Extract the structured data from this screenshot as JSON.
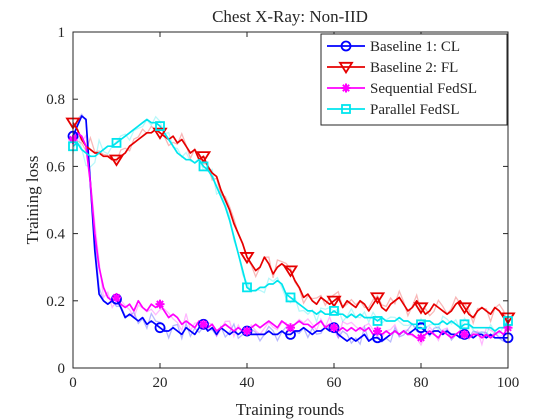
{
  "chart_data": {
    "type": "line",
    "title": "Chest X-Ray: Non-IID",
    "xlabel": "Training rounds",
    "ylabel": "Training loss",
    "xlim": [
      0,
      100
    ],
    "ylim": [
      0,
      1
    ],
    "xticks": [
      0,
      20,
      40,
      60,
      80,
      100
    ],
    "yticks": [
      0,
      0.2,
      0.4,
      0.6,
      0.8,
      1
    ],
    "ytick_labels": [
      "0",
      "0.2",
      "0.4",
      "0.6",
      "0.8",
      "1"
    ],
    "grid": false,
    "legend_position": "top-right",
    "series": [
      {
        "name": "Baseline 1: CL",
        "color": "#0000ff",
        "marker": "circle",
        "marker_every": 10,
        "x": [
          0,
          1,
          2,
          3,
          4,
          5,
          6,
          7,
          8,
          9,
          10,
          11,
          12,
          13,
          14,
          15,
          16,
          17,
          18,
          19,
          20,
          21,
          22,
          23,
          24,
          25,
          26,
          27,
          28,
          29,
          30,
          31,
          32,
          33,
          34,
          35,
          36,
          37,
          38,
          39,
          40,
          41,
          42,
          43,
          44,
          45,
          46,
          47,
          48,
          49,
          50,
          51,
          52,
          53,
          54,
          55,
          56,
          57,
          58,
          59,
          60,
          61,
          62,
          63,
          64,
          65,
          66,
          67,
          68,
          69,
          70,
          71,
          72,
          73,
          74,
          75,
          76,
          77,
          78,
          79,
          80,
          81,
          82,
          83,
          84,
          85,
          86,
          87,
          88,
          89,
          90,
          91,
          92,
          93,
          94,
          95,
          96,
          97,
          98,
          99,
          100
        ],
        "values": [
          0.69,
          0.72,
          0.75,
          0.74,
          0.55,
          0.35,
          0.22,
          0.2,
          0.19,
          0.2,
          0.205,
          0.18,
          0.15,
          0.16,
          0.15,
          0.14,
          0.15,
          0.13,
          0.14,
          0.13,
          0.12,
          0.11,
          0.11,
          0.12,
          0.11,
          0.1,
          0.12,
          0.11,
          0.1,
          0.12,
          0.13,
          0.11,
          0.12,
          0.1,
          0.12,
          0.11,
          0.1,
          0.11,
          0.1,
          0.11,
          0.11,
          0.1,
          0.1,
          0.1,
          0.1,
          0.11,
          0.1,
          0.1,
          0.11,
          0.1,
          0.1,
          0.11,
          0.11,
          0.12,
          0.11,
          0.1,
          0.11,
          0.11,
          0.12,
          0.11,
          0.12,
          0.1,
          0.09,
          0.08,
          0.09,
          0.08,
          0.09,
          0.1,
          0.08,
          0.09,
          0.09,
          0.08,
          0.09,
          0.1,
          0.11,
          0.1,
          0.11,
          0.1,
          0.11,
          0.12,
          0.12,
          0.11,
          0.1,
          0.11,
          0.11,
          0.1,
          0.11,
          0.1,
          0.1,
          0.09,
          0.1,
          0.1,
          0.09,
          0.1,
          0.1,
          0.09,
          0.1,
          0.09,
          0.09,
          0.09,
          0.09
        ]
      },
      {
        "name": "Baseline 2: FL",
        "color": "#e60000",
        "marker": "triangle-down",
        "marker_every": 10,
        "x": [
          0,
          1,
          2,
          3,
          4,
          5,
          6,
          7,
          8,
          9,
          10,
          11,
          12,
          13,
          14,
          15,
          16,
          17,
          18,
          19,
          20,
          21,
          22,
          23,
          24,
          25,
          26,
          27,
          28,
          29,
          30,
          31,
          32,
          33,
          34,
          35,
          36,
          37,
          38,
          39,
          40,
          41,
          42,
          43,
          44,
          45,
          46,
          47,
          48,
          49,
          50,
          51,
          52,
          53,
          54,
          55,
          56,
          57,
          58,
          59,
          60,
          61,
          62,
          63,
          64,
          65,
          66,
          67,
          68,
          69,
          70,
          71,
          72,
          73,
          74,
          75,
          76,
          77,
          78,
          79,
          80,
          81,
          82,
          83,
          84,
          85,
          86,
          87,
          88,
          89,
          90,
          91,
          92,
          93,
          94,
          95,
          96,
          97,
          98,
          99,
          100
        ],
        "values": [
          0.73,
          0.71,
          0.68,
          0.66,
          0.65,
          0.64,
          0.64,
          0.63,
          0.63,
          0.62,
          0.62,
          0.63,
          0.64,
          0.66,
          0.67,
          0.68,
          0.69,
          0.7,
          0.7,
          0.71,
          0.7,
          0.69,
          0.68,
          0.69,
          0.67,
          0.68,
          0.66,
          0.64,
          0.65,
          0.62,
          0.63,
          0.6,
          0.58,
          0.57,
          0.53,
          0.5,
          0.47,
          0.43,
          0.4,
          0.37,
          0.33,
          0.31,
          0.29,
          0.3,
          0.33,
          0.31,
          0.28,
          0.3,
          0.31,
          0.3,
          0.29,
          0.26,
          0.24,
          0.21,
          0.22,
          0.2,
          0.19,
          0.21,
          0.2,
          0.19,
          0.2,
          0.21,
          0.18,
          0.2,
          0.19,
          0.18,
          0.2,
          0.19,
          0.17,
          0.19,
          0.21,
          0.18,
          0.17,
          0.19,
          0.2,
          0.21,
          0.19,
          0.17,
          0.18,
          0.2,
          0.18,
          0.16,
          0.17,
          0.19,
          0.18,
          0.17,
          0.16,
          0.17,
          0.19,
          0.2,
          0.18,
          0.16,
          0.15,
          0.17,
          0.18,
          0.17,
          0.16,
          0.18,
          0.17,
          0.15,
          0.15
        ]
      },
      {
        "name": "Sequential FedSL",
        "color": "#ff00ff",
        "marker": "asterisk",
        "marker_every": 10,
        "x": [
          0,
          1,
          2,
          3,
          4,
          5,
          6,
          7,
          8,
          9,
          10,
          11,
          12,
          13,
          14,
          15,
          16,
          17,
          18,
          19,
          20,
          21,
          22,
          23,
          24,
          25,
          26,
          27,
          28,
          29,
          30,
          31,
          32,
          33,
          34,
          35,
          36,
          37,
          38,
          39,
          40,
          41,
          42,
          43,
          44,
          45,
          46,
          47,
          48,
          49,
          50,
          51,
          52,
          53,
          54,
          55,
          56,
          57,
          58,
          59,
          60,
          61,
          62,
          63,
          64,
          65,
          66,
          67,
          68,
          69,
          70,
          71,
          72,
          73,
          74,
          75,
          76,
          77,
          78,
          79,
          80,
          81,
          82,
          83,
          84,
          85,
          86,
          87,
          88,
          89,
          90,
          91,
          92,
          93,
          94,
          95,
          96,
          97,
          98,
          99,
          100
        ],
        "values": [
          0.68,
          0.7,
          0.69,
          0.66,
          0.55,
          0.4,
          0.3,
          0.24,
          0.21,
          0.2,
          0.21,
          0.19,
          0.18,
          0.19,
          0.17,
          0.2,
          0.18,
          0.17,
          0.19,
          0.18,
          0.19,
          0.17,
          0.15,
          0.16,
          0.15,
          0.13,
          0.14,
          0.13,
          0.12,
          0.14,
          0.13,
          0.12,
          0.13,
          0.11,
          0.12,
          0.13,
          0.12,
          0.11,
          0.12,
          0.11,
          0.11,
          0.12,
          0.13,
          0.12,
          0.13,
          0.14,
          0.13,
          0.12,
          0.14,
          0.13,
          0.12,
          0.13,
          0.14,
          0.13,
          0.13,
          0.12,
          0.13,
          0.14,
          0.12,
          0.13,
          0.12,
          0.11,
          0.12,
          0.11,
          0.12,
          0.11,
          0.12,
          0.11,
          0.12,
          0.1,
          0.11,
          0.1,
          0.11,
          0.1,
          0.11,
          0.1,
          0.11,
          0.1,
          0.1,
          0.09,
          0.09,
          0.1,
          0.11,
          0.1,
          0.09,
          0.11,
          0.1,
          0.09,
          0.1,
          0.11,
          0.1,
          0.09,
          0.1,
          0.1,
          0.09,
          0.1,
          0.09,
          0.1,
          0.11,
          0.1,
          0.12
        ]
      },
      {
        "name": "Parallel FedSL",
        "color": "#00e5ee",
        "marker": "square",
        "marker_every": 10,
        "x": [
          0,
          1,
          2,
          3,
          4,
          5,
          6,
          7,
          8,
          9,
          10,
          11,
          12,
          13,
          14,
          15,
          16,
          17,
          18,
          19,
          20,
          21,
          22,
          23,
          24,
          25,
          26,
          27,
          28,
          29,
          30,
          31,
          32,
          33,
          34,
          35,
          36,
          37,
          38,
          39,
          40,
          41,
          42,
          43,
          44,
          45,
          46,
          47,
          48,
          49,
          50,
          51,
          52,
          53,
          54,
          55,
          56,
          57,
          58,
          59,
          60,
          61,
          62,
          63,
          64,
          65,
          66,
          67,
          68,
          69,
          70,
          71,
          72,
          73,
          74,
          75,
          76,
          77,
          78,
          79,
          80,
          81,
          82,
          83,
          84,
          85,
          86,
          87,
          88,
          89,
          90,
          91,
          92,
          93,
          94,
          95,
          96,
          97,
          98,
          99,
          100
        ],
        "values": [
          0.66,
          0.67,
          0.65,
          0.64,
          0.63,
          0.63,
          0.64,
          0.65,
          0.66,
          0.66,
          0.67,
          0.68,
          0.69,
          0.7,
          0.71,
          0.72,
          0.73,
          0.74,
          0.73,
          0.73,
          0.72,
          0.7,
          0.68,
          0.66,
          0.64,
          0.63,
          0.62,
          0.62,
          0.61,
          0.62,
          0.6,
          0.59,
          0.57,
          0.54,
          0.51,
          0.48,
          0.44,
          0.39,
          0.34,
          0.29,
          0.24,
          0.23,
          0.23,
          0.24,
          0.24,
          0.25,
          0.25,
          0.26,
          0.25,
          0.22,
          0.21,
          0.2,
          0.19,
          0.18,
          0.17,
          0.17,
          0.16,
          0.17,
          0.16,
          0.16,
          0.17,
          0.16,
          0.16,
          0.15,
          0.16,
          0.15,
          0.16,
          0.15,
          0.15,
          0.15,
          0.14,
          0.15,
          0.14,
          0.14,
          0.14,
          0.15,
          0.14,
          0.14,
          0.13,
          0.13,
          0.13,
          0.14,
          0.14,
          0.13,
          0.13,
          0.14,
          0.13,
          0.14,
          0.13,
          0.12,
          0.13,
          0.13,
          0.12,
          0.12,
          0.12,
          0.12,
          0.12,
          0.11,
          0.12,
          0.12,
          0.14
        ]
      }
    ]
  }
}
